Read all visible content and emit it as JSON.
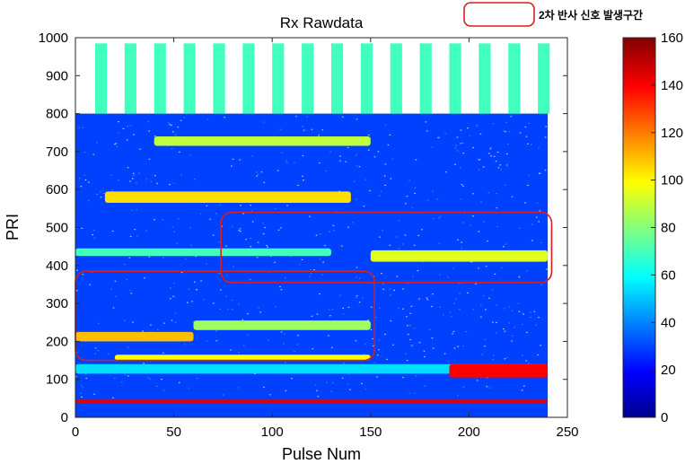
{
  "chart_data": {
    "type": "heatmap",
    "title": "Rx Rawdata",
    "xlabel": "Pulse Num",
    "ylabel": "PRI",
    "xlim": [
      0,
      250
    ],
    "ylim": [
      0,
      1000
    ],
    "xticks": [
      0,
      50,
      100,
      150,
      200,
      250
    ],
    "yticks": [
      0,
      100,
      200,
      300,
      400,
      500,
      600,
      700,
      800,
      900,
      1000
    ],
    "colorbar": {
      "clim": [
        0,
        160
      ],
      "ticks": [
        0,
        20,
        40,
        60,
        80,
        100,
        120,
        140,
        160
      ],
      "colormap": "jet"
    },
    "background_value": 30,
    "data_x_range": [
      0,
      240
    ],
    "columns_upper": {
      "y_range": [
        800,
        985
      ],
      "x_starts": [
        10,
        25,
        40,
        55,
        70,
        85,
        100,
        115,
        130,
        145,
        160,
        175,
        190,
        205,
        220,
        235
      ],
      "width": 6,
      "value": 70
    },
    "regions": [
      {
        "x": [
          0,
          240
        ],
        "y": [
          38,
          48
        ],
        "value": 145
      },
      {
        "x": [
          0,
          240
        ],
        "y": [
          115,
          140
        ],
        "value": 55
      },
      {
        "x": [
          190,
          240
        ],
        "y": [
          105,
          140
        ],
        "value": 140
      },
      {
        "x": [
          20,
          150
        ],
        "y": [
          150,
          165
        ],
        "value": 100
      },
      {
        "x": [
          0,
          60
        ],
        "y": [
          200,
          225
        ],
        "value": 110
      },
      {
        "x": [
          60,
          150
        ],
        "y": [
          230,
          255
        ],
        "value": 85
      },
      {
        "x": [
          150,
          240
        ],
        "y": [
          410,
          440
        ],
        "value": 95
      },
      {
        "x": [
          0,
          130
        ],
        "y": [
          425,
          445
        ],
        "value": 70
      },
      {
        "x": [
          15,
          140
        ],
        "y": [
          565,
          595
        ],
        "value": 105
      },
      {
        "x": [
          40,
          150
        ],
        "y": [
          715,
          740
        ],
        "value": 90
      }
    ],
    "annotations": [
      {
        "type": "rect",
        "label": "",
        "x": [
          0,
          152
        ],
        "y": [
          150,
          385
        ]
      },
      {
        "type": "rect",
        "label": "",
        "x": [
          74,
          242
        ],
        "y": [
          355,
          540
        ]
      }
    ],
    "legend": {
      "label": "2차 반사 신호 발생구간",
      "marker": "rounded-rect",
      "color": "#d81e1e",
      "placement": "top-right"
    }
  }
}
